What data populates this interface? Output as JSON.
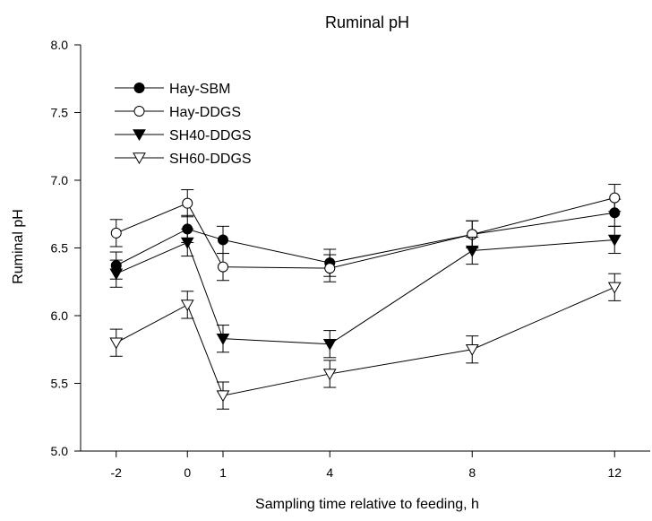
{
  "chart_data": {
    "type": "line",
    "title": "Ruminal pH",
    "xlabel": "Sampling time relative to feeding, h",
    "ylabel": "Ruminal pH",
    "x": [
      -2,
      0,
      1,
      4,
      8,
      12
    ],
    "x_ticks": [
      "-2",
      "0",
      "1",
      "4",
      "8",
      "12"
    ],
    "y_ticks": [
      "5.0",
      "5.5",
      "6.0",
      "6.5",
      "7.0",
      "7.5",
      "8.0"
    ],
    "xlim": [
      -3,
      13
    ],
    "ylim": [
      5.0,
      8.0
    ],
    "grid": false,
    "legend_position": "top-left",
    "series": [
      {
        "name": "Hay-SBM",
        "marker": "filled-circle",
        "values": [
          6.37,
          6.64,
          6.56,
          6.39,
          6.6,
          6.76
        ],
        "error": [
          0.1,
          0.1,
          0.1,
          0.1,
          0.1,
          0.1
        ]
      },
      {
        "name": "Hay-DDGS",
        "marker": "open-circle",
        "values": [
          6.61,
          6.83,
          6.36,
          6.35,
          6.6,
          6.87
        ],
        "error": [
          0.1,
          0.1,
          0.1,
          0.1,
          0.1,
          0.1
        ]
      },
      {
        "name": "SH40-DDGS",
        "marker": "filled-triangle-down",
        "values": [
          6.31,
          6.54,
          5.83,
          5.79,
          6.48,
          6.56
        ],
        "error": [
          0.1,
          0.1,
          0.1,
          0.1,
          0.1,
          0.1
        ]
      },
      {
        "name": "SH60-DDGS",
        "marker": "open-triangle-down",
        "values": [
          5.8,
          6.08,
          5.41,
          5.57,
          5.75,
          6.21
        ],
        "error": [
          0.1,
          0.1,
          0.1,
          0.1,
          0.1,
          0.1
        ]
      }
    ]
  }
}
